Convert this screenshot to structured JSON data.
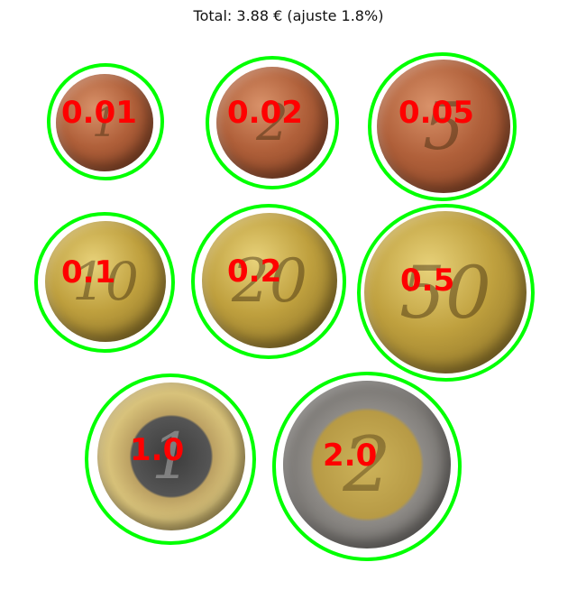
{
  "title": "Total: 3.88 € (ajuste 1.8%)",
  "coins": [
    {
      "label": "0.01",
      "material": "copper",
      "glyph": "1"
    },
    {
      "label": "0.02",
      "material": "copper",
      "glyph": "2"
    },
    {
      "label": "0.05",
      "material": "copper",
      "glyph": "5"
    },
    {
      "label": "0.1",
      "material": "gold",
      "glyph": "10"
    },
    {
      "label": "0.2",
      "material": "gold",
      "glyph": "20"
    },
    {
      "label": "0.5",
      "material": "gold",
      "glyph": "50"
    },
    {
      "label": "1.0",
      "material": "bimetal-1",
      "glyph": "1"
    },
    {
      "label": "2.0",
      "material": "bimetal-2",
      "glyph": "2"
    }
  ],
  "colors": {
    "detection_ring": "#00ff00",
    "value_label": "#ff0000"
  }
}
